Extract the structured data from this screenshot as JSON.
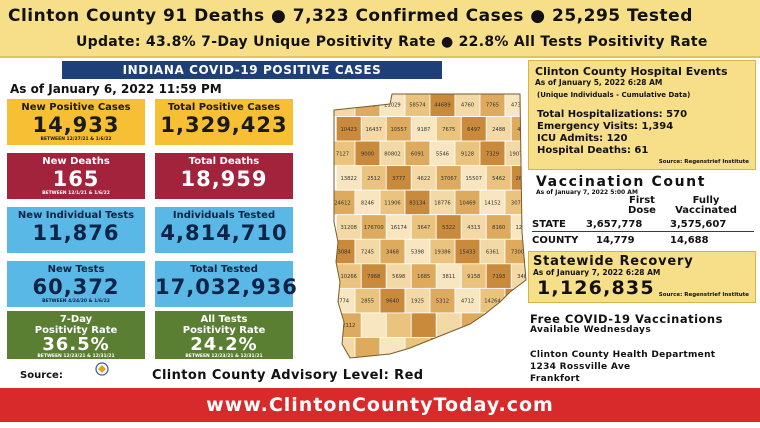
{
  "header": {
    "line1": "Clinton County  91 Deaths  ● 7,323 Confirmed Cases    ● 25,295 Tested",
    "line2": "Update: 43.8% 7-Day Unique Positivity Rate ● 22.8% All Tests Positivity Rate"
  },
  "title": "INDIANA COVID-19 POSITIVE CASES",
  "as_of": "As of January 6, 2022 11:59 PM",
  "tiles": [
    {
      "label": "New Positive Cases",
      "value": "14,933",
      "sub": "BETWEEN 12/27/21 & 1/6/22",
      "color": "#f6bf34"
    },
    {
      "label": "Total Positive Cases",
      "value": "1,329,423",
      "sub": "",
      "color": "#f6bf34"
    },
    {
      "label": "New Deaths",
      "value": "165",
      "sub": "BETWEEN 12/1/21 & 1/6/22",
      "color": "#a3223c"
    },
    {
      "label": "Total Deaths",
      "value": "18,959",
      "sub": "",
      "color": "#a3223c"
    },
    {
      "label": "New Individual Tests",
      "value": "11,876",
      "sub": "",
      "color": "#59b8e5"
    },
    {
      "label": "Individuals Tested",
      "value": "4,814,710",
      "sub": "",
      "color": "#59b8e5"
    },
    {
      "label": "New Tests",
      "value": "60,372",
      "sub": "BETWEEN 4/24/20 & 1/6/22",
      "color": "#59b8e5"
    },
    {
      "label": "Total Tested",
      "value": "17,032,936",
      "sub": "",
      "color": "#59b8e5"
    },
    {
      "label": "7-Day\nPositivity Rate",
      "value": "36.5%",
      "sub": "BETWEEN 12/23/21 & 12/31/21",
      "color": "#5a7f33"
    },
    {
      "label": "All Tests\nPositivity Rate",
      "value": "24.2%",
      "sub": "BETWEEN 12/23/21 & 12/31/21",
      "color": "#5a7f33"
    }
  ],
  "source_label": "Source:",
  "logo_text": "Indiana State Department of Health",
  "advisory": "Clinton County Advisory Level: Red",
  "footer": "www.ClintonCountyToday.com",
  "hospital": {
    "title": "Clinton County Hospital Events",
    "as_of": "As of January 5, 2022 6:28 AM",
    "note": "(Unique Individuals - Cumulative Data)",
    "lines": [
      "Total Hospitalizations: 570",
      "Emergency Visits: 1,394",
      "ICU Admits: 120",
      "Hospital Deaths: 61"
    ],
    "source": "Source: Regenstrief Institute"
  },
  "vaccination": {
    "title": "Vaccination Count",
    "as_of": "As of January 7, 2022 5:00 AM",
    "col1": "First Dose",
    "col2": "Fully Vaccinated",
    "state_label": "STATE",
    "state_first": "3,657,778",
    "state_full": "3,575,607",
    "county_label": "COUNTY",
    "county_first": "14,779",
    "county_full": "14,688"
  },
  "recovery": {
    "title": "Statewide Recovery",
    "as_of": "As of January 7, 2022 6:28 AM",
    "value": "1,126,835",
    "source": "Source: Regenstrief Institute"
  },
  "free_vax": {
    "title": "Free COVID-19 Vaccinations",
    "sub": "Available Wednesdays"
  },
  "address": {
    "line1": "Clinton County Health Department",
    "line2": "1234 Rossville Ave",
    "line3": "Frankfort"
  },
  "map_numbers": [
    "92302",
    "31842",
    "21029",
    "58574",
    "44689",
    "4760",
    "7765",
    "4735",
    "10423",
    "16437",
    "10557",
    "9187",
    "7675",
    "6497",
    "2488",
    "4036",
    "7127",
    "9000",
    "80802",
    "6091",
    "5546",
    "9128",
    "7329",
    "19073",
    "13822",
    "2512",
    "3777",
    "4622",
    "37067",
    "15507",
    "5462",
    "26461",
    "24612",
    "8246",
    "11906",
    "83134",
    "18776",
    "10469",
    "14152",
    "3077",
    "31208",
    "176700",
    "16174",
    "3647",
    "5322",
    "4313",
    "8160",
    "12434",
    "33084",
    "7245",
    "3468",
    "5398",
    "19386",
    "15433",
    "6361",
    "7300",
    "10266",
    "7968",
    "5698",
    "1685",
    "3811",
    "9158",
    "7193",
    "3484",
    "8774",
    "2855",
    "9640",
    "1925",
    "5312",
    "4712",
    "14264",
    "5390",
    "2112"
  ]
}
